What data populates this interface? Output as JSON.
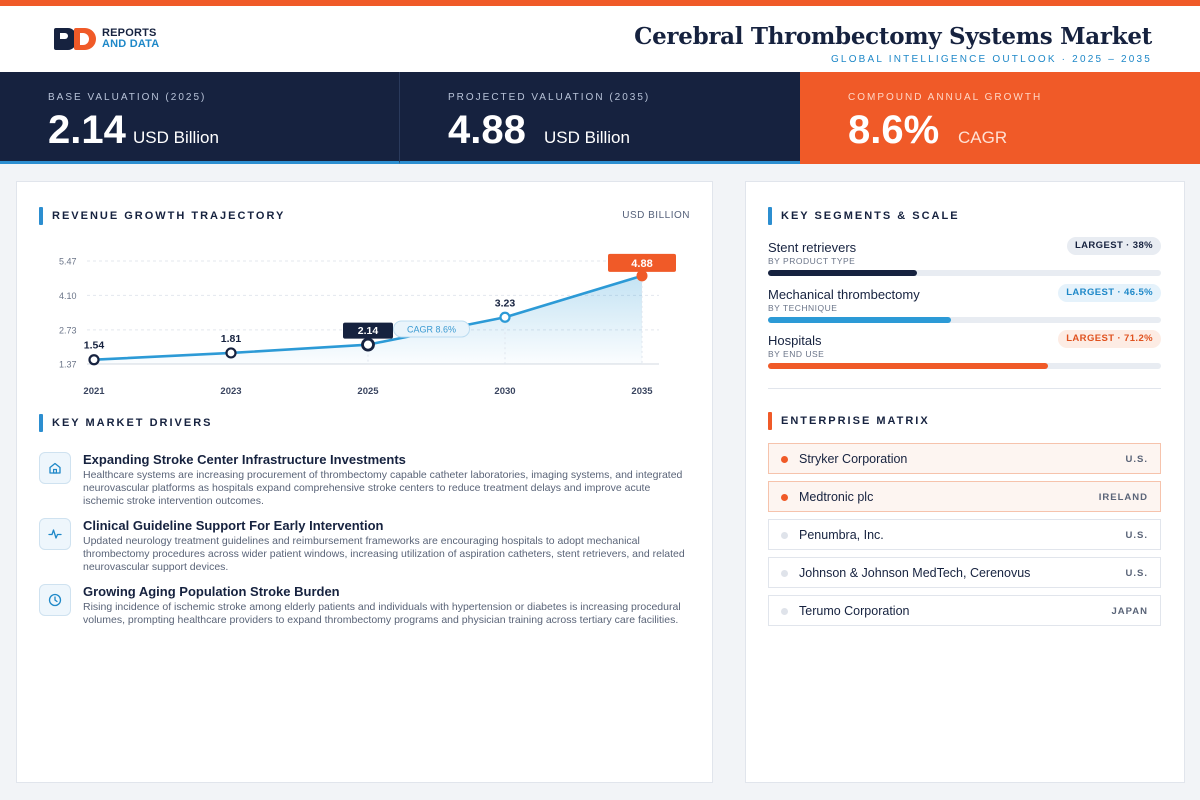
{
  "brand": {
    "logo_line1": "REPORTS",
    "logo_line2": "AND DATA",
    "logo_color": "#16223f",
    "accent": "#f05a28",
    "blue": "#1e88c8"
  },
  "header": {
    "title": "Cerebral Thrombectomy Systems Market",
    "subtitle": "GLOBAL INTELLIGENCE OUTLOOK  ·  2025 – 2035"
  },
  "kpis": [
    {
      "label": "BASE VALUATION (2025)",
      "value": "2.14",
      "unit": "USD Billion"
    },
    {
      "label": "PROJECTED VALUATION (2035)",
      "value": "4.88",
      "unit": "USD Billion"
    },
    {
      "label": "COMPOUND ANNUAL GROWTH",
      "value": "8.6%",
      "unit": "CAGR"
    }
  ],
  "revenue": {
    "title": "REVENUE GROWTH TRAJECTORY",
    "unit_label": "USD BILLION",
    "cagr_pill": "CAGR 8.6%"
  },
  "chart_data": {
    "type": "line",
    "categories": [
      "2021",
      "2023",
      "2025",
      "2030",
      "2035"
    ],
    "values": [
      1.54,
      1.81,
      2.14,
      3.23,
      4.88
    ],
    "value_labels": [
      "1.54",
      "1.81",
      "2.14",
      "3.23",
      "4.88"
    ],
    "y_ticks": [
      "5.47",
      "4.10",
      "2.73",
      "1.37"
    ],
    "ylim": [
      1.37,
      5.47
    ],
    "highlight": {
      "2025": "#16223f",
      "2035": "#f05a28"
    },
    "grid": true,
    "line_color": "#2c9ad6"
  },
  "drivers": {
    "title": "KEY MARKET DRIVERS",
    "items": [
      {
        "icon": "home-icon",
        "title": "Expanding Stroke Center Infrastructure Investments",
        "desc": "Healthcare systems are increasing procurement of thrombectomy capable catheter laboratories, imaging systems, and integrated neurovascular platforms as hospitals expand comprehensive stroke centers to reduce treatment delays and improve acute ischemic stroke intervention outcomes."
      },
      {
        "icon": "pulse-icon",
        "title": "Clinical Guideline Support For Early Intervention",
        "desc": "Updated neurology treatment guidelines and reimbursement frameworks are encouraging hospitals to adopt mechanical thrombectomy procedures across wider patient windows, increasing utilization of aspiration catheters, stent retrievers, and related neurovascular support devices."
      },
      {
        "icon": "clock-icon",
        "title": "Growing Aging Population Stroke Burden",
        "desc": "Rising incidence of ischemic stroke among elderly patients and individuals with hypertension or diabetes is increasing procedural volumes, prompting healthcare providers to expand thrombectomy programs and physician training across tertiary care facilities."
      }
    ]
  },
  "segments": {
    "title": "KEY SEGMENTS & SCALE",
    "items": [
      {
        "name": "Stent retrievers",
        "category": "BY PRODUCT TYPE",
        "badge": "LARGEST · 38%",
        "share": 0.38,
        "color": "#16223f",
        "badge_bg": "#e8ecf2",
        "badge_fg": "#16223f"
      },
      {
        "name": "Mechanical thrombectomy",
        "category": "BY TECHNIQUE",
        "badge": "LARGEST · 46.5%",
        "share": 0.465,
        "color": "#2c9ad6",
        "badge_bg": "#e5f2fb",
        "badge_fg": "#1e88c8"
      },
      {
        "name": "Hospitals",
        "category": "BY END USE",
        "badge": "LARGEST · 71.2%",
        "share": 0.712,
        "color": "#f05a28",
        "badge_bg": "#fdece4",
        "badge_fg": "#e0521f"
      }
    ]
  },
  "enterprise": {
    "title": "ENTERPRISE MATRIX",
    "items": [
      {
        "name": "Stryker Corporation",
        "country": "U.S.",
        "highlight": true
      },
      {
        "name": "Medtronic plc",
        "country": "IRELAND",
        "highlight": true
      },
      {
        "name": "Penumbra, Inc.",
        "country": "U.S.",
        "highlight": false
      },
      {
        "name": "Johnson & Johnson MedTech, Cerenovus",
        "country": "U.S.",
        "highlight": false
      },
      {
        "name": "Terumo Corporation",
        "country": "JAPAN",
        "highlight": false
      }
    ]
  }
}
